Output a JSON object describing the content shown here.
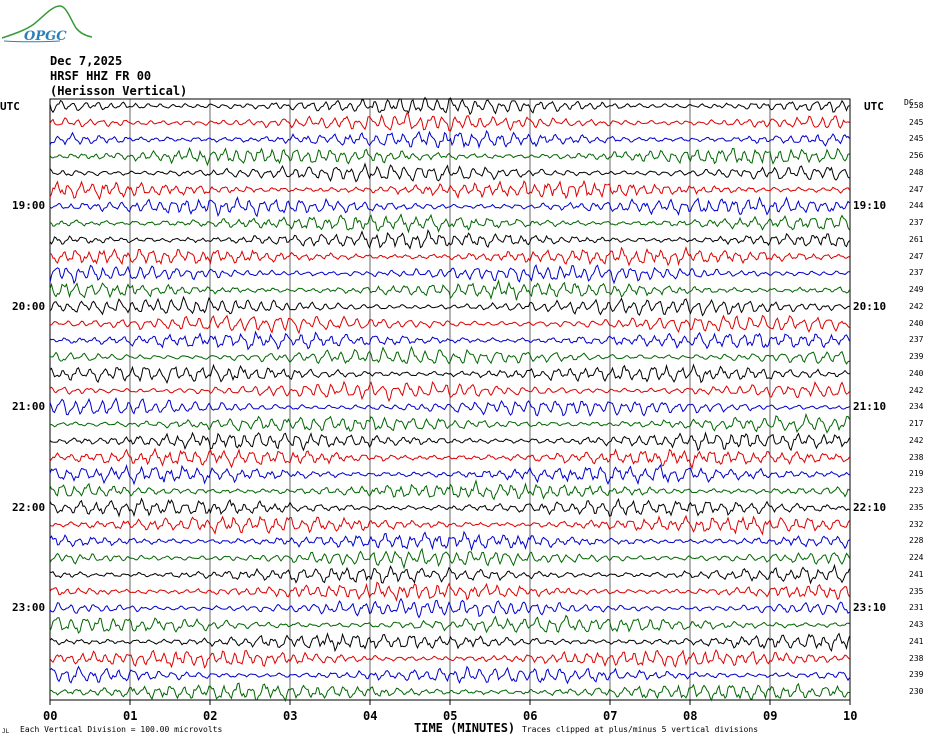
{
  "logo": {
    "text": "OPGC",
    "accent": "#2d7fb8",
    "curve": "#3a9a3a"
  },
  "header": {
    "date": "Dec 7,2025",
    "station": "HRSF HHZ FR 00",
    "name": "(Herisson Vertical)"
  },
  "axis": {
    "left_title": "UTC",
    "right_title": "UTC",
    "dc_title": "DC",
    "xlabel": "TIME (MINUTES)",
    "xticks": [
      "00",
      "01",
      "02",
      "03",
      "04",
      "05",
      "06",
      "07",
      "08",
      "09",
      "10"
    ]
  },
  "footer": {
    "left": "Each Vertical Division =  100.00 microvolts",
    "right": "Traces clipped at plus/minus 5 vertical divisions",
    "corner": "JL"
  },
  "colors": {
    "trace_cycle": [
      "#000000",
      "#dd0000",
      "#0000cc",
      "#006600"
    ],
    "grid": "#000000"
  },
  "chart_data": {
    "type": "line",
    "title": "HRSF HHZ FR 00 (Herisson Vertical)",
    "xlabel": "TIME (MINUTES)",
    "xlim": [
      0,
      10
    ],
    "trace_count": 36,
    "minutes_per_trace": 10,
    "hour_labels_left": [
      "19:00",
      "20:00",
      "21:00",
      "22:00",
      "23:00"
    ],
    "hour_labels_left_trace_index": [
      6,
      12,
      18,
      24,
      30
    ],
    "hour_labels_right": [
      "19:10",
      "20:10",
      "21:10",
      "22:10",
      "23:10"
    ],
    "hour_labels_right_trace_index": [
      6,
      12,
      18,
      24,
      30
    ],
    "dc_offsets": [
      258,
      245,
      245,
      256,
      248,
      247,
      244,
      237,
      261,
      247,
      237,
      249,
      242,
      240,
      237,
      239,
      240,
      242,
      234,
      217,
      242,
      238,
      219,
      223,
      235,
      232,
      228,
      224,
      241,
      235,
      231,
      243,
      241,
      238,
      239,
      230
    ],
    "scale_microvolts_per_division": 100.0,
    "clip_divisions": 5
  }
}
